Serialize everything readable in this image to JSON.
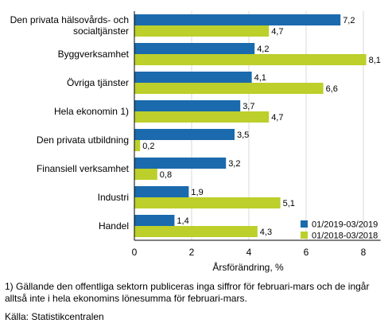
{
  "chart_data": {
    "type": "bar",
    "orientation": "horizontal",
    "categories": [
      "Den privata hälsovårds- och socialtjänster",
      "Byggverksamhet",
      "Övriga tjänster",
      "Hela ekonomin 1)",
      "Den privata utbildning",
      "Finansiell verksamhet",
      "Industri",
      "Handel"
    ],
    "series": [
      {
        "name": "01/2019-03/2019",
        "color": "#1a6aad",
        "values": [
          7.2,
          4.2,
          4.1,
          3.7,
          3.5,
          3.2,
          1.9,
          1.4
        ],
        "labels": [
          "7,2",
          "4,2",
          "4,1",
          "3,7",
          "3,5",
          "3,2",
          "1,9",
          "1,4"
        ]
      },
      {
        "name": "01/2018-03/2018",
        "color": "#bccf2b",
        "values": [
          4.7,
          8.1,
          6.6,
          4.7,
          0.2,
          0.8,
          5.1,
          4.3
        ],
        "labels": [
          "4,7",
          "8,1",
          "6,6",
          "4,7",
          "0,2",
          "0,8",
          "5,1",
          "4,3"
        ]
      }
    ],
    "xlabel": "Årsförändring, %",
    "xlim": [
      0,
      8.6
    ],
    "xticks": [
      0,
      2,
      4,
      6,
      8
    ],
    "grid": true,
    "legend_position": "bottom-right"
  },
  "footnote": "1) Gällande den offentliga sektorn publiceras inga siffror för februari-mars och de ingår alltså inte i hela ekonomins lönesumma för februari-mars.",
  "source": "Källa: Statistikcentralen"
}
